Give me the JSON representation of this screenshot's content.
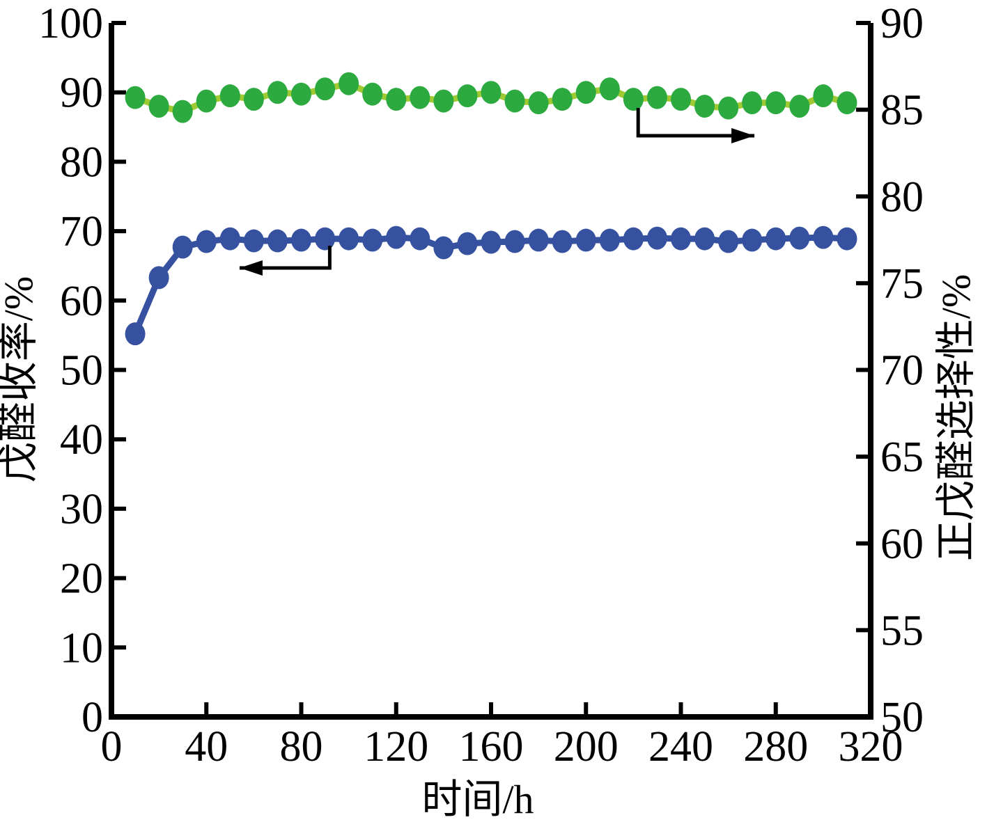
{
  "figure": {
    "background": "#ffffff",
    "axis_color": "#000000"
  },
  "chart_data": {
    "type": "line",
    "title": "",
    "xlabel": "时间/h",
    "ylabel_left": "戊醛收率/%",
    "ylabel_right": "正戊醛选择性/%",
    "xlim": [
      0,
      320
    ],
    "x_ticks": [
      0,
      40,
      80,
      120,
      160,
      200,
      240,
      280,
      320
    ],
    "ylim_left": [
      0,
      100
    ],
    "y_ticks_left": [
      0,
      10,
      20,
      30,
      40,
      50,
      60,
      70,
      80,
      90,
      100
    ],
    "ylim_right": [
      50,
      90
    ],
    "y_ticks_right": [
      50,
      55,
      60,
      65,
      70,
      75,
      80,
      85,
      90
    ],
    "grid": "off",
    "legend": "none",
    "x": [
      10,
      20,
      30,
      40,
      50,
      60,
      70,
      80,
      90,
      100,
      110,
      120,
      130,
      140,
      150,
      160,
      170,
      180,
      190,
      200,
      210,
      220,
      230,
      240,
      250,
      260,
      270,
      280,
      290,
      300,
      310
    ],
    "series": [
      {
        "name": "戊醛收率",
        "axis": "left",
        "marker_color": "#35519f",
        "line_color": "#35519f",
        "values": [
          55.2,
          63.3,
          67.7,
          68.5,
          68.9,
          68.6,
          68.6,
          68.7,
          68.9,
          68.9,
          68.7,
          69.1,
          68.9,
          67.6,
          68.2,
          68.4,
          68.5,
          68.7,
          68.5,
          68.7,
          68.7,
          68.9,
          69.0,
          68.9,
          68.9,
          68.5,
          68.7,
          68.9,
          69.0,
          69.1,
          68.9
        ]
      },
      {
        "name": "正戊醛选择性",
        "axis": "right",
        "marker_color": "#2caa40",
        "line_color": "#9fca33",
        "values": [
          85.7,
          85.2,
          84.9,
          85.5,
          85.8,
          85.6,
          86.0,
          85.9,
          86.2,
          86.5,
          85.9,
          85.6,
          85.7,
          85.5,
          85.8,
          86.0,
          85.5,
          85.4,
          85.6,
          86.0,
          86.2,
          85.6,
          85.7,
          85.6,
          85.2,
          85.1,
          85.4,
          85.4,
          85.2,
          85.8,
          85.4
        ]
      }
    ],
    "annotations": [
      {
        "name": "yield-left-axis-arrow",
        "series": "戊醛收率",
        "axis": "left",
        "color": "#000000",
        "path": [
          [
            92,
            67.9
          ],
          [
            92,
            64.7
          ],
          [
            54,
            64.7
          ]
        ],
        "arrow_at": "end"
      },
      {
        "name": "selectivity-right-axis-arrow",
        "series": "正戊醛选择性",
        "axis": "right",
        "color": "#000000",
        "path": [
          [
            222,
            85.1
          ],
          [
            222,
            83.5
          ],
          [
            271,
            83.5
          ]
        ],
        "arrow_at": "end"
      }
    ]
  }
}
